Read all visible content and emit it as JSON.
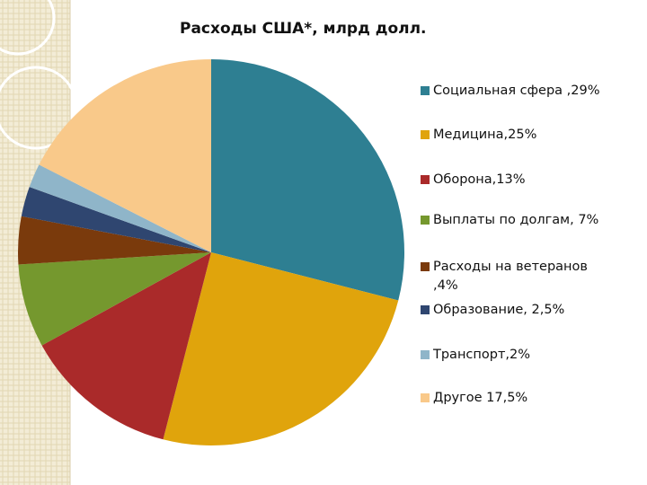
{
  "chart_data": {
    "type": "pie",
    "title": "Расходы США*, млрд долл.",
    "categories": [
      "Социальная сфера ,29%",
      "Медицина,25%",
      "Оборона,13%",
      "Выплаты по долгам, 7%",
      "Расходы на ветеранов ,4%",
      "Образование, 2,5%",
      "Транспорт,2%",
      "Другое 17,5%"
    ],
    "values": [
      29,
      25,
      13,
      7,
      4,
      2.5,
      2,
      17.5
    ],
    "colors": [
      "#2e7f92",
      "#e0a40c",
      "#aa2a2a",
      "#75982e",
      "#7a3a0c",
      "#2f4670",
      "#8fb5c9",
      "#f9c98a"
    ]
  }
}
